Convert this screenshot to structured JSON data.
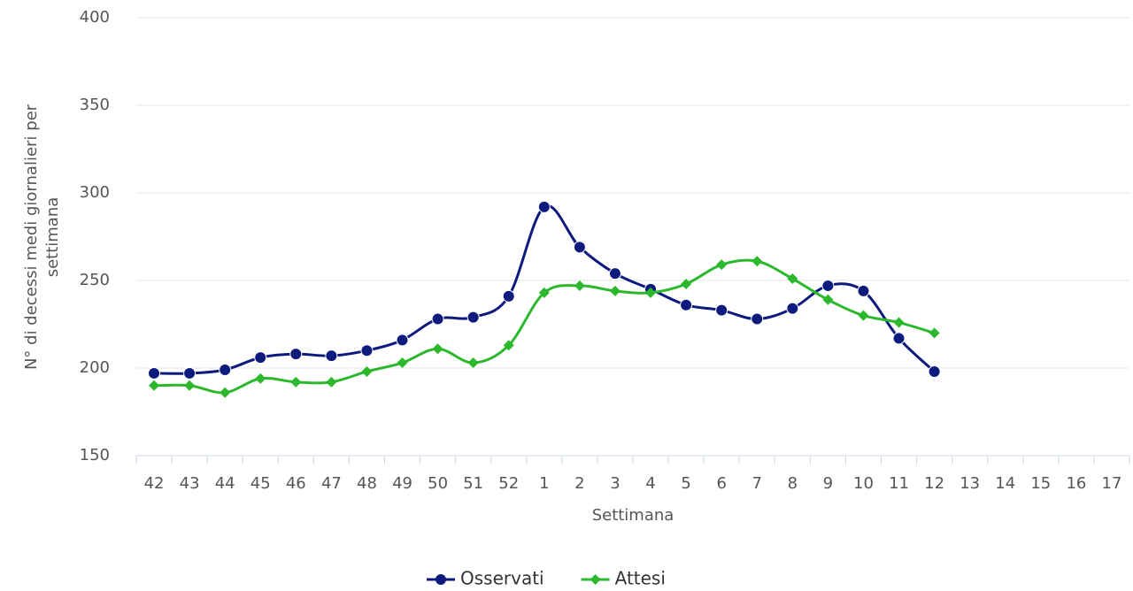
{
  "chart_data": {
    "type": "line",
    "x_label": "Settimana",
    "y_label": "N° di decessi medi giornalieri per settimana",
    "categories": [
      "42",
      "43",
      "44",
      "45",
      "46",
      "47",
      "48",
      "49",
      "50",
      "51",
      "52",
      "1",
      "2",
      "3",
      "4",
      "5",
      "6",
      "7",
      "8",
      "9",
      "10",
      "11",
      "12",
      "13",
      "14",
      "15",
      "16",
      "17"
    ],
    "series": [
      {
        "name": "Osservati",
        "color": "#0d1a7e",
        "marker": "circle",
        "values": [
          197,
          197,
          199,
          206,
          208,
          207,
          210,
          216,
          228,
          229,
          241,
          292,
          269,
          254,
          245,
          236,
          233,
          228,
          234,
          247,
          244,
          217,
          198,
          null,
          null,
          null,
          null,
          null
        ]
      },
      {
        "name": "Attesi",
        "color": "#2cb82c",
        "marker": "diamond",
        "values": [
          190,
          190,
          186,
          194,
          192,
          192,
          198,
          203,
          211,
          203,
          213,
          243,
          247,
          244,
          243,
          248,
          259,
          261,
          251,
          239,
          230,
          226,
          220,
          null,
          null,
          null,
          null,
          null
        ]
      }
    ],
    "ylim": [
      150,
      400
    ],
    "yticks": [
      150,
      200,
      250,
      300,
      350,
      400
    ],
    "grid": true,
    "legend": "bottom"
  }
}
